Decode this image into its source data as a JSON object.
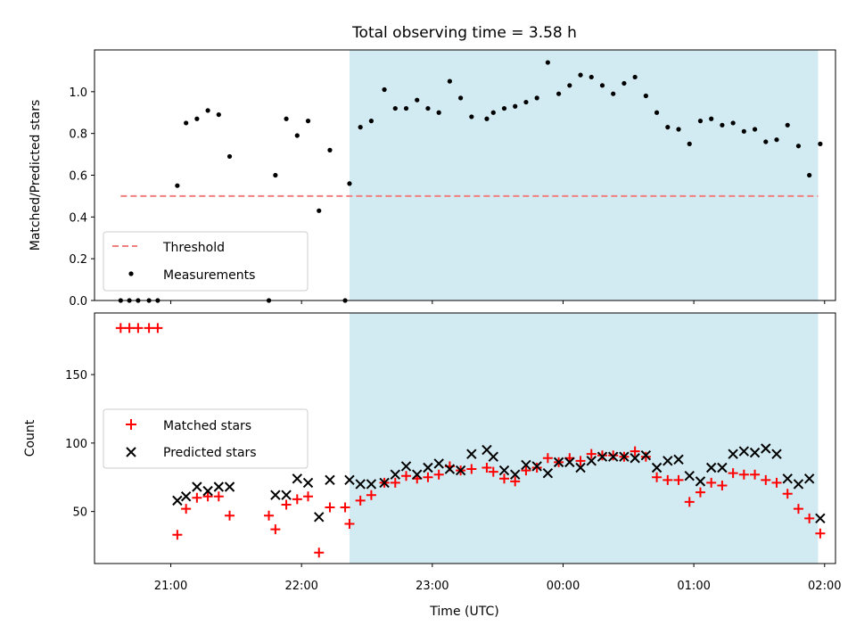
{
  "chart_data": {
    "title": "Total observing time = 3.58 h",
    "xlabel": "Time (UTC)",
    "x_ticks": [
      "21:00",
      "22:00",
      "23:00",
      "00:00",
      "01:00",
      "02:00"
    ],
    "shaded_interval": {
      "start": "22:22",
      "end": "01:57",
      "color": "#add8e6"
    },
    "panels": [
      {
        "type": "scatter",
        "ylabel": "Matched/Predicted stars",
        "ylim": [
          0.0,
          1.2
        ],
        "y_ticks": [
          "0.0",
          "0.2",
          "0.4",
          "0.6",
          "0.8",
          "1.0"
        ],
        "legend_position": "lower-left",
        "threshold": {
          "name": "Threshold",
          "value": 0.5,
          "x_start": "20:37",
          "x_end": "01:57",
          "color": "#f08080"
        },
        "series": [
          {
            "name": "Measurements",
            "color": "#000000",
            "points": [
              [
                "20:37",
                0.0
              ],
              [
                "20:41",
                0.0
              ],
              [
                "20:45",
                0.0
              ],
              [
                "20:50",
                0.0
              ],
              [
                "20:54",
                0.0
              ],
              [
                "21:03",
                0.55
              ],
              [
                "21:07",
                0.85
              ],
              [
                "21:12",
                0.87
              ],
              [
                "21:17",
                0.91
              ],
              [
                "21:22",
                0.89
              ],
              [
                "21:27",
                0.69
              ],
              [
                "21:45",
                0.0
              ],
              [
                "21:48",
                0.6
              ],
              [
                "21:53",
                0.87
              ],
              [
                "21:58",
                0.79
              ],
              [
                "22:03",
                0.86
              ],
              [
                "22:08",
                0.43
              ],
              [
                "22:13",
                0.72
              ],
              [
                "22:20",
                0.0
              ],
              [
                "22:22",
                0.56
              ],
              [
                "22:27",
                0.83
              ],
              [
                "22:32",
                0.86
              ],
              [
                "22:38",
                1.01
              ],
              [
                "22:43",
                0.92
              ],
              [
                "22:48",
                0.92
              ],
              [
                "22:53",
                0.96
              ],
              [
                "22:58",
                0.92
              ],
              [
                "23:03",
                0.9
              ],
              [
                "23:08",
                1.05
              ],
              [
                "23:13",
                0.97
              ],
              [
                "23:18",
                0.88
              ],
              [
                "23:25",
                0.87
              ],
              [
                "23:28",
                0.9
              ],
              [
                "23:33",
                0.92
              ],
              [
                "23:38",
                0.93
              ],
              [
                "23:43",
                0.95
              ],
              [
                "23:48",
                0.97
              ],
              [
                "23:53",
                1.14
              ],
              [
                "23:58",
                0.99
              ],
              [
                "00:03",
                1.03
              ],
              [
                "00:08",
                1.08
              ],
              [
                "00:13",
                1.07
              ],
              [
                "00:18",
                1.03
              ],
              [
                "00:23",
                0.99
              ],
              [
                "00:28",
                1.04
              ],
              [
                "00:33",
                1.07
              ],
              [
                "00:38",
                0.98
              ],
              [
                "00:43",
                0.9
              ],
              [
                "00:48",
                0.83
              ],
              [
                "00:53",
                0.82
              ],
              [
                "00:58",
                0.75
              ],
              [
                "01:03",
                0.86
              ],
              [
                "01:08",
                0.87
              ],
              [
                "01:13",
                0.84
              ],
              [
                "01:18",
                0.85
              ],
              [
                "01:23",
                0.81
              ],
              [
                "01:28",
                0.82
              ],
              [
                "01:33",
                0.76
              ],
              [
                "01:38",
                0.77
              ],
              [
                "01:43",
                0.84
              ],
              [
                "01:48",
                0.74
              ],
              [
                "01:53",
                0.6
              ],
              [
                "01:58",
                0.75
              ]
            ]
          }
        ]
      },
      {
        "type": "scatter",
        "ylabel": "Count",
        "ylim": [
          12,
          195
        ],
        "y_ticks": [
          "50",
          "100",
          "150"
        ],
        "legend_position": "center-left",
        "series": [
          {
            "name": "Matched stars",
            "color": "#ff0000",
            "marker": "plus",
            "points": [
              [
                "20:37",
                184
              ],
              [
                "20:41",
                184
              ],
              [
                "20:45",
                184
              ],
              [
                "20:50",
                184
              ],
              [
                "20:54",
                184
              ],
              [
                "21:03",
                33
              ],
              [
                "21:07",
                52
              ],
              [
                "21:12",
                60
              ],
              [
                "21:17",
                61
              ],
              [
                "21:22",
                61
              ],
              [
                "21:27",
                47
              ],
              [
                "21:45",
                47
              ],
              [
                "21:48",
                37
              ],
              [
                "21:53",
                55
              ],
              [
                "21:58",
                59
              ],
              [
                "22:03",
                61
              ],
              [
                "22:08",
                20
              ],
              [
                "22:13",
                53
              ],
              [
                "22:20",
                53
              ],
              [
                "22:22",
                41
              ],
              [
                "22:27",
                58
              ],
              [
                "22:32",
                62
              ],
              [
                "22:38",
                71
              ],
              [
                "22:43",
                71
              ],
              [
                "22:48",
                76
              ],
              [
                "22:53",
                74
              ],
              [
                "22:58",
                75
              ],
              [
                "23:03",
                77
              ],
              [
                "23:08",
                83
              ],
              [
                "23:13",
                80
              ],
              [
                "23:18",
                81
              ],
              [
                "23:25",
                82
              ],
              [
                "23:28",
                79
              ],
              [
                "23:33",
                74
              ],
              [
                "23:38",
                72
              ],
              [
                "23:43",
                80
              ],
              [
                "23:48",
                82
              ],
              [
                "23:53",
                89
              ],
              [
                "23:58",
                86
              ],
              [
                "00:03",
                89
              ],
              [
                "00:08",
                87
              ],
              [
                "00:13",
                92
              ],
              [
                "00:18",
                91
              ],
              [
                "00:23",
                91
              ],
              [
                "00:28",
                90
              ],
              [
                "00:33",
                94
              ],
              [
                "00:38",
                90
              ],
              [
                "00:43",
                75
              ],
              [
                "00:48",
                73
              ],
              [
                "00:53",
                73
              ],
              [
                "00:58",
                57
              ],
              [
                "01:03",
                64
              ],
              [
                "01:08",
                71
              ],
              [
                "01:13",
                69
              ],
              [
                "01:18",
                78
              ],
              [
                "01:23",
                77
              ],
              [
                "01:28",
                77
              ],
              [
                "01:33",
                73
              ],
              [
                "01:38",
                71
              ],
              [
                "01:43",
                63
              ],
              [
                "01:48",
                52
              ],
              [
                "01:53",
                45
              ],
              [
                "01:58",
                34
              ]
            ]
          },
          {
            "name": "Predicted stars",
            "color": "#000000",
            "marker": "x",
            "points": [
              [
                "21:03",
                58
              ],
              [
                "21:07",
                61
              ],
              [
                "21:12",
                68
              ],
              [
                "21:17",
                65
              ],
              [
                "21:22",
                68
              ],
              [
                "21:27",
                68
              ],
              [
                "21:48",
                62
              ],
              [
                "21:53",
                62
              ],
              [
                "21:58",
                74
              ],
              [
                "22:03",
                71
              ],
              [
                "22:08",
                46
              ],
              [
                "22:13",
                73
              ],
              [
                "22:22",
                73
              ],
              [
                "22:27",
                70
              ],
              [
                "22:32",
                70
              ],
              [
                "22:38",
                71
              ],
              [
                "22:43",
                77
              ],
              [
                "22:48",
                83
              ],
              [
                "22:53",
                77
              ],
              [
                "22:58",
                82
              ],
              [
                "23:03",
                85
              ],
              [
                "23:08",
                81
              ],
              [
                "23:13",
                80
              ],
              [
                "23:18",
                92
              ],
              [
                "23:25",
                95
              ],
              [
                "23:28",
                90
              ],
              [
                "23:33",
                80
              ],
              [
                "23:38",
                77
              ],
              [
                "23:43",
                84
              ],
              [
                "23:48",
                83
              ],
              [
                "23:53",
                78
              ],
              [
                "23:58",
                86
              ],
              [
                "00:03",
                86
              ],
              [
                "00:08",
                82
              ],
              [
                "00:13",
                87
              ],
              [
                "00:18",
                90
              ],
              [
                "00:23",
                90
              ],
              [
                "00:28",
                90
              ],
              [
                "00:33",
                89
              ],
              [
                "00:38",
                91
              ],
              [
                "00:43",
                82
              ],
              [
                "00:48",
                87
              ],
              [
                "00:53",
                88
              ],
              [
                "00:58",
                76
              ],
              [
                "01:03",
                72
              ],
              [
                "01:08",
                82
              ],
              [
                "01:13",
                82
              ],
              [
                "01:18",
                92
              ],
              [
                "01:23",
                94
              ],
              [
                "01:28",
                93
              ],
              [
                "01:33",
                96
              ],
              [
                "01:38",
                92
              ],
              [
                "01:43",
                74
              ],
              [
                "01:48",
                70
              ],
              [
                "01:53",
                74
              ],
              [
                "01:58",
                45
              ]
            ]
          }
        ]
      }
    ]
  }
}
